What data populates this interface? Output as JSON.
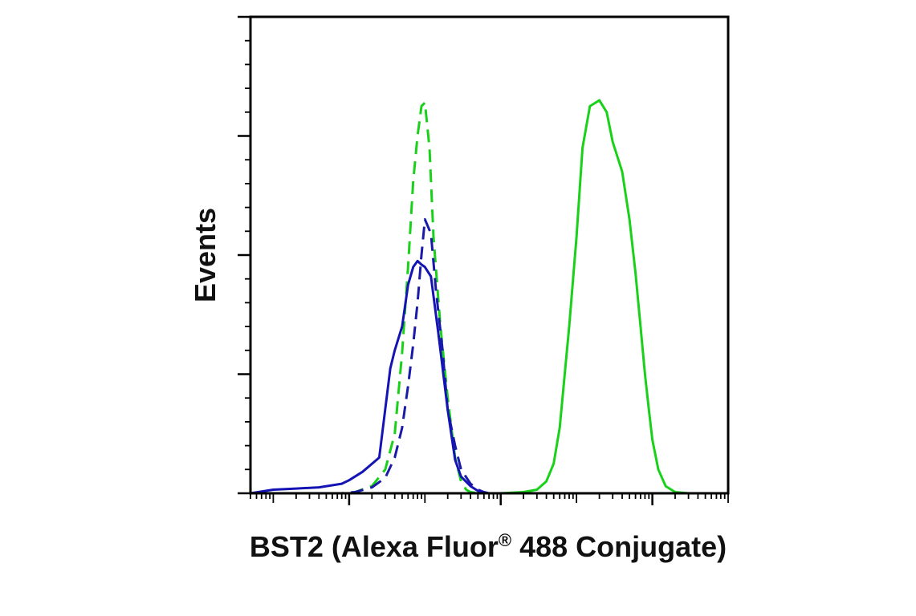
{
  "chart_data": {
    "type": "line",
    "title": "",
    "xlabel_main": "BST2 (Alexa Fluor",
    "xlabel_reg": "®",
    "xlabel_tail": " 488 Conjugate)",
    "ylabel": "Events",
    "x_scale": "log",
    "xlim": [
      0.005,
      10000
    ],
    "ylim": [
      0,
      400
    ],
    "grid": false,
    "legend": "none",
    "x_major_ticks": [
      0.1,
      10,
      1000
    ],
    "y_major_ticks": [
      0,
      100,
      200,
      300,
      400
    ],
    "series": [
      {
        "color": "#1ad11a",
        "dash": "dashed",
        "x": [
          0.08,
          0.12,
          0.2,
          0.3,
          0.4,
          0.5,
          0.6,
          0.7,
          0.8,
          0.9,
          1.0,
          1.15,
          1.3,
          1.6,
          2.0,
          2.5,
          3.0,
          3.5,
          4.0,
          5.0,
          6.0
        ],
        "y": [
          0,
          1,
          6,
          20,
          50,
          118,
          190,
          262,
          300,
          325,
          328,
          290,
          215,
          140,
          80,
          30,
          10,
          3,
          1,
          0,
          0
        ]
      },
      {
        "color": "#1a1aa8",
        "dash": "dashed",
        "x": [
          0.08,
          0.12,
          0.2,
          0.3,
          0.4,
          0.5,
          0.6,
          0.7,
          0.8,
          0.9,
          1.0,
          1.2,
          1.4,
          1.7,
          2.0,
          2.5,
          3.0,
          4.0,
          5.0,
          6.0,
          7.0
        ],
        "y": [
          0,
          1,
          5,
          13,
          30,
          55,
          90,
          125,
          160,
          200,
          230,
          218,
          170,
          122,
          70,
          40,
          20,
          8,
          3,
          1,
          0
        ]
      },
      {
        "color": "#1414b4",
        "dash": "solid",
        "x": [
          0.01,
          0.02,
          0.04,
          0.08,
          0.1,
          0.15,
          0.25,
          0.35,
          0.4,
          0.5,
          0.6,
          0.7,
          0.8,
          0.9,
          1.0,
          1.2,
          1.5,
          2.0,
          2.5,
          3.0,
          4.0,
          5.0,
          6.0
        ],
        "y": [
          3,
          4,
          5,
          8,
          11,
          18,
          30,
          105,
          120,
          140,
          175,
          190,
          195,
          192,
          190,
          182,
          135,
          70,
          28,
          14,
          6,
          2,
          0
        ]
      },
      {
        "color": "#1ad11a",
        "dash": "solid",
        "x": [
          10,
          20,
          30,
          40,
          50,
          60,
          80,
          100,
          120,
          150,
          200,
          250,
          300,
          400,
          500,
          600,
          700,
          800,
          900,
          1000,
          1200,
          1500,
          2000,
          3000,
          5000
        ],
        "y": [
          0,
          1,
          3,
          10,
          25,
          55,
          140,
          215,
          290,
          325,
          330,
          320,
          295,
          270,
          230,
          185,
          140,
          100,
          70,
          45,
          20,
          6,
          1,
          0,
          0
        ]
      }
    ]
  }
}
